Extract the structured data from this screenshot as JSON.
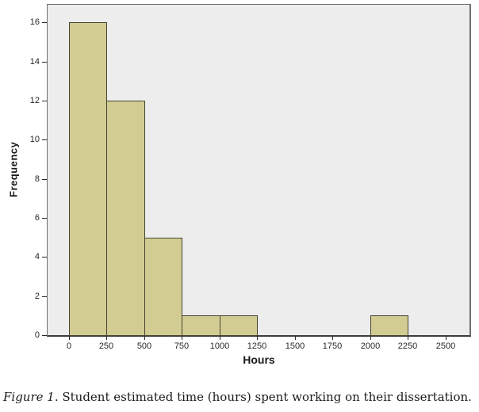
{
  "figure": {
    "caption": {
      "label": "Figure 1",
      "text": ". Student estimated time (hours) spent working on their dissertation."
    }
  },
  "chart_data": {
    "type": "bar",
    "subtype": "histogram",
    "title": "",
    "xlabel": "Hours",
    "ylabel": "Frequency",
    "bins": [
      {
        "x0": 0,
        "x1": 250,
        "count": 16
      },
      {
        "x0": 250,
        "x1": 500,
        "count": 12
      },
      {
        "x0": 500,
        "x1": 750,
        "count": 5
      },
      {
        "x0": 750,
        "x1": 1000,
        "count": 1
      },
      {
        "x0": 1000,
        "x1": 1250,
        "count": 1
      },
      {
        "x0": 2000,
        "x1": 2250,
        "count": 1
      }
    ],
    "x_ticks": [
      0,
      250,
      500,
      750,
      1000,
      1250,
      1500,
      1750,
      2000,
      2250,
      2500
    ],
    "y_ticks": [
      0,
      2,
      4,
      6,
      8,
      10,
      12,
      14,
      16
    ],
    "xlim": [
      -140,
      2660
    ],
    "ylim": [
      0,
      16.9
    ],
    "grid": false,
    "legend": "none",
    "colors": {
      "bar_fill": "#d2cc93",
      "bar_stroke": "#45432f",
      "plot_bg": "#ededed",
      "plot_border": "#6e6e6e",
      "axis_line": "#3d3d3d",
      "tick_color": "#2a2a2a",
      "tick_label": "#262626"
    }
  }
}
